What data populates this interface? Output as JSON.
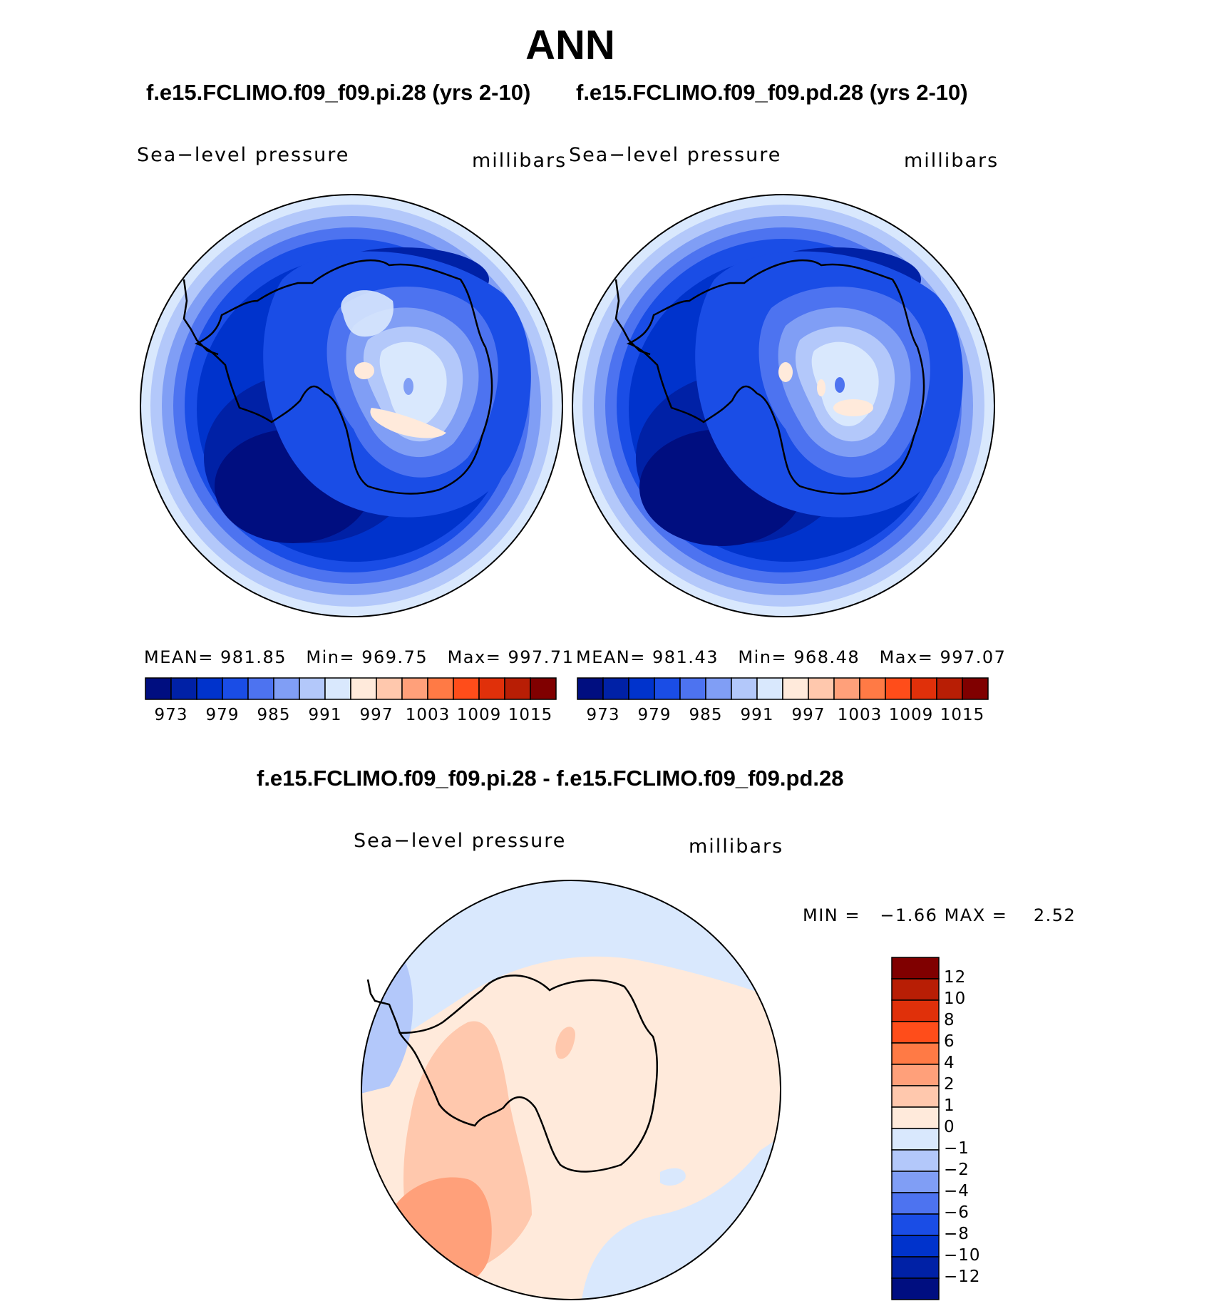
{
  "title": "ANN",
  "panels": [
    {
      "case": "f.e15.FCLIMO.f09_f09.pi.28 (yrs 2-10)",
      "variable": "Sea−level pressure",
      "units": "millibars",
      "stats": {
        "mean_label": "MEAN=",
        "mean": "981.85",
        "min_label": "Min=",
        "min": "969.75",
        "max_label": "Max=",
        "max": "997.71"
      }
    },
    {
      "case": "f.e15.FCLIMO.f09_f09.pd.28 (yrs 2-10)",
      "variable": "Sea−level pressure",
      "units": "millibars",
      "stats": {
        "mean_label": "MEAN=",
        "mean": "981.43",
        "min_label": "Min=",
        "min": "968.48",
        "max_label": "Max=",
        "max": "997.07"
      }
    }
  ],
  "colorbar_abs": {
    "colors": [
      "#000e80",
      "#0021a6",
      "#0033cc",
      "#1a4de6",
      "#4d73f0",
      "#809ef5",
      "#b3c8fa",
      "#d9e8fd",
      "#ffeadb",
      "#ffc8ad",
      "#ffa07a",
      "#ff7a45",
      "#ff4d1a",
      "#e0300a",
      "#b81e05",
      "#800000"
    ],
    "labels": [
      "973",
      "979",
      "985",
      "991",
      "997",
      "1003",
      "1009",
      "1015"
    ]
  },
  "diff": {
    "title": "f.e15.FCLIMO.f09_f09.pi.28 - f.e15.FCLIMO.f09_f09.pd.28",
    "variable": "Sea−level pressure",
    "units": "millibars",
    "min_label": "MIN =",
    "min": "−1.66",
    "max_label": "MAX =",
    "max": "2.52"
  },
  "colorbar_diff": {
    "colors": [
      "#800000",
      "#b81e05",
      "#e0300a",
      "#ff4d1a",
      "#ff7a45",
      "#ffa07a",
      "#ffc8ad",
      "#ffeadb",
      "#d9e8fd",
      "#b3c8fa",
      "#809ef5",
      "#4d73f0",
      "#1a4de6",
      "#0033cc",
      "#0021a6",
      "#000e80"
    ],
    "labels": [
      "12",
      "10",
      "8",
      "6",
      "4",
      "2",
      "1",
      "0",
      "−1",
      "−2",
      "−4",
      "−6",
      "−8",
      "−10",
      "−12"
    ]
  }
}
